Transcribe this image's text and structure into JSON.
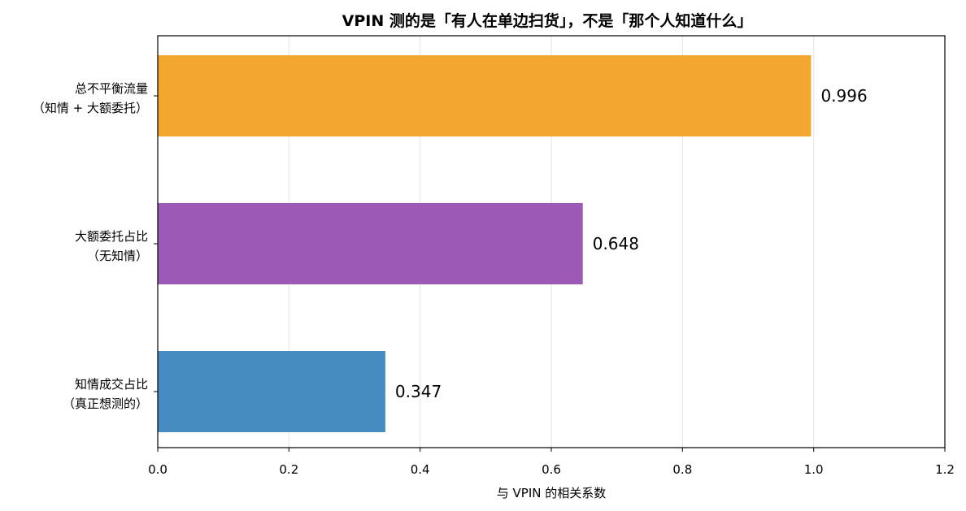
{
  "chart_data": {
    "type": "bar",
    "orientation": "horizontal",
    "title": "VPIN 测的是「有人在单边扫货」，不是「那个人知道什么」",
    "xlabel": "与 VPIN 的相关系数",
    "ylabel": "",
    "xlim": [
      0,
      1.2
    ],
    "xticks": [
      0.0,
      0.2,
      0.4,
      0.6,
      0.8,
      1.0,
      1.2
    ],
    "xtick_labels": [
      "0.0",
      "0.2",
      "0.4",
      "0.6",
      "0.8",
      "1.0",
      "1.2"
    ],
    "grid": "vertical",
    "categories": [
      [
        "总不平衡流量",
        "（知情 + 大额委托）"
      ],
      [
        "大额委托占比",
        "（无知情）"
      ],
      [
        "知情成交占比",
        "（真正想测的）"
      ]
    ],
    "values": [
      0.996,
      0.648,
      0.347
    ],
    "value_labels": [
      "0.996",
      "0.648",
      "0.347"
    ],
    "colors": [
      "#F2A52B",
      "#9A57B5",
      "#428AC0"
    ]
  }
}
